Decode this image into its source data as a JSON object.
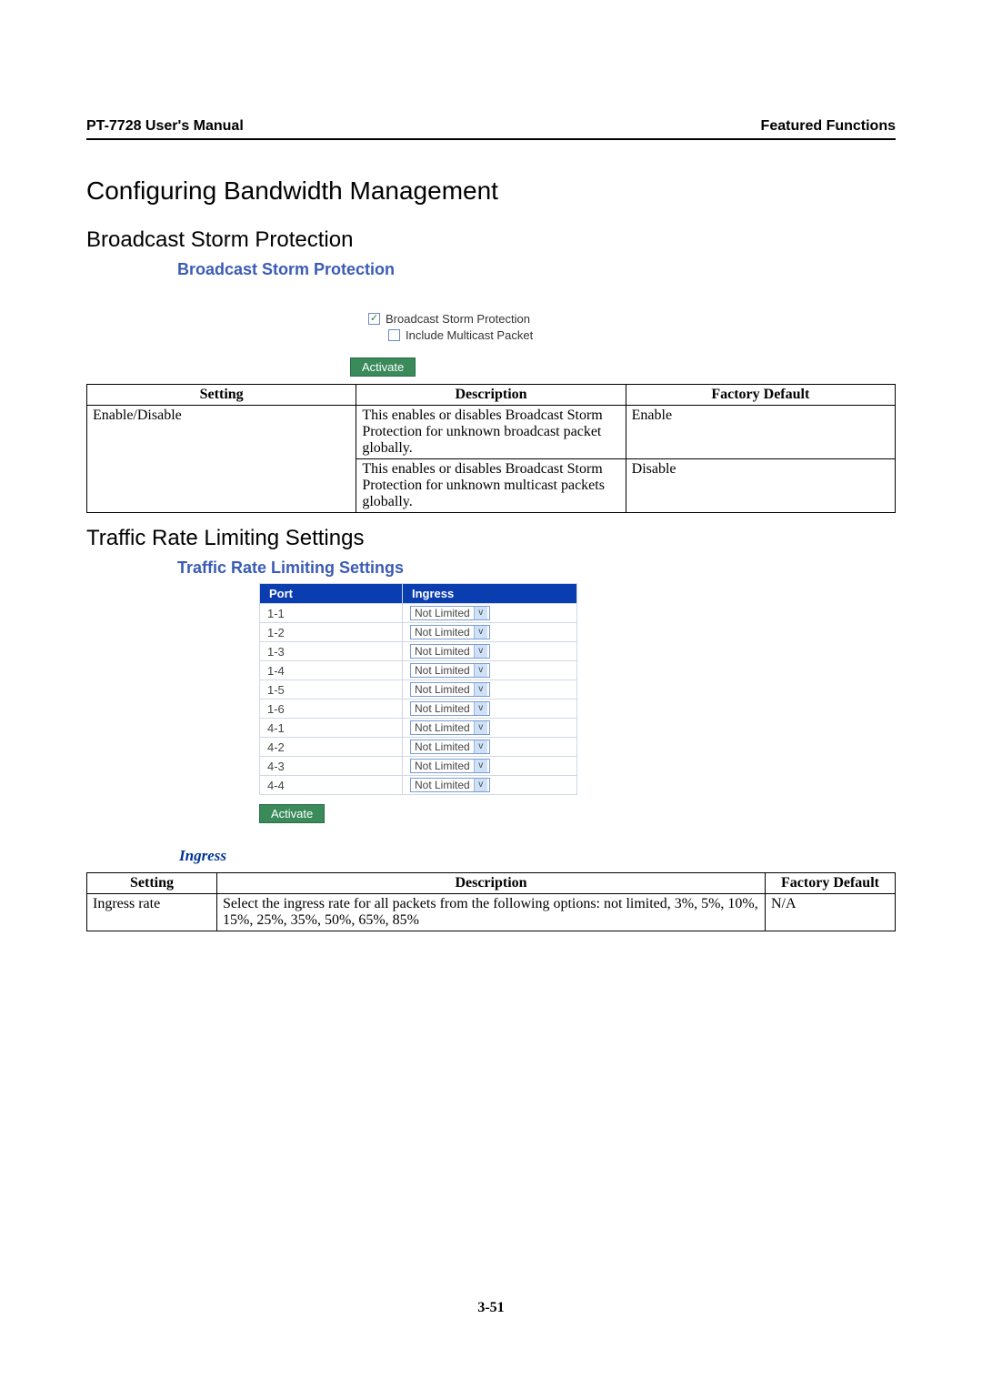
{
  "header": {
    "left": "PT-7728 User's Manual",
    "right": "Featured Functions"
  },
  "h1": "Configuring Bandwidth Management",
  "sectionA": {
    "heading": "Broadcast Storm Protection",
    "panelTitle": "Broadcast Storm Protection",
    "cb1": {
      "label": "Broadcast Storm Protection",
      "checked": "✓"
    },
    "cb2": {
      "label": "Include Multicast Packet",
      "checked": ""
    },
    "activate": "Activate",
    "table": {
      "cols": [
        "Setting",
        "Description",
        "Factory Default"
      ],
      "r1": {
        "setting": "Enable/Disable",
        "desc": "This enables or disables Broadcast Storm Protection for unknown broadcast packet globally.",
        "fd": "Enable"
      },
      "r2": {
        "setting": "",
        "desc": "This enables or disables Broadcast Storm Protection for unknown multicast packets globally.",
        "fd": "Disable"
      }
    }
  },
  "sectionB": {
    "heading": "Traffic Rate Limiting Settings",
    "panelTitle": "Traffic Rate Limiting Settings",
    "cols": {
      "port": "Port",
      "ingress": "Ingress"
    },
    "rows": [
      {
        "port": "1-1",
        "val": "Not Limited"
      },
      {
        "port": "1-2",
        "val": "Not Limited"
      },
      {
        "port": "1-3",
        "val": "Not Limited"
      },
      {
        "port": "1-4",
        "val": "Not Limited"
      },
      {
        "port": "1-5",
        "val": "Not Limited"
      },
      {
        "port": "1-6",
        "val": "Not Limited"
      },
      {
        "port": "4-1",
        "val": "Not Limited"
      },
      {
        "port": "4-2",
        "val": "Not Limited"
      },
      {
        "port": "4-3",
        "val": "Not Limited"
      },
      {
        "port": "4-4",
        "val": "Not Limited"
      }
    ],
    "activate": "Activate",
    "ingressLabel": "Ingress",
    "table": {
      "cols": [
        "Setting",
        "Description",
        "Factory Default"
      ],
      "r1": {
        "setting": "Ingress rate",
        "desc": "Select the ingress rate for all packets from the following options: not limited, 3%, 5%, 10%, 15%, 25%, 35%, 50%, 65%, 85%",
        "fd": "N/A"
      }
    }
  },
  "footer": "3-51",
  "colors": {
    "panelTitle": "#3b5bb5",
    "btnBg": "#3a8a5a",
    "tableHeaderBg": "#0a3db0",
    "ingressLabel": "#003399"
  }
}
